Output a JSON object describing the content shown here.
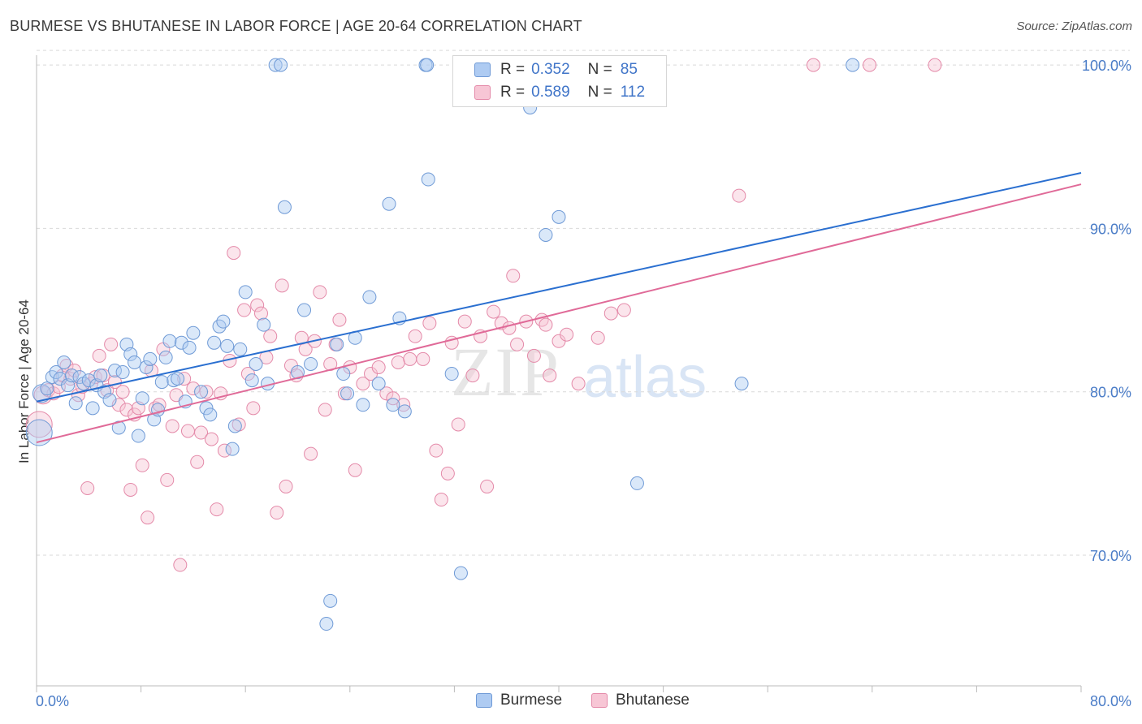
{
  "title": "BURMESE VS BHUTANESE IN LABOR FORCE | AGE 20-64 CORRELATION CHART",
  "source": "Source: ZipAtlas.com",
  "watermark": {
    "zip": "ZIP",
    "atlas": "atlas"
  },
  "legend": {
    "rows": [
      {
        "r_label": "R =",
        "r_value": "0.352",
        "n_label": "N =",
        "n_value": "85",
        "color": "#aecbf2",
        "border": "#6f9ad6"
      },
      {
        "r_label": "R =",
        "r_value": "0.589",
        "n_label": "N =",
        "n_value": "112",
        "color": "#f7c6d5",
        "border": "#e48aa9"
      }
    ]
  },
  "bottom_legend": [
    {
      "label": "Burmese",
      "color": "#aecbf2",
      "border": "#6f9ad6"
    },
    {
      "label": "Bhutanese",
      "color": "#f7c6d5",
      "border": "#e48aa9"
    }
  ],
  "chart_data": {
    "type": "scatter",
    "title": "BURMESE VS BHUTANESE IN LABOR FORCE | AGE 20-64 CORRELATION CHART",
    "xlabel": "",
    "ylabel": "In Labor Force | Age 20-64",
    "xlim": [
      0,
      80
    ],
    "ylim": [
      62,
      101
    ],
    "x_tick_labels": [
      "0.0%",
      "80.0%"
    ],
    "y_ticks": [
      70,
      80,
      90,
      100
    ],
    "y_tick_labels": [
      "70.0%",
      "80.0%",
      "90.0%",
      "100.0%"
    ],
    "grid": true,
    "colors": {
      "burmese": "#6f9ad6",
      "bhutanese": "#e48aa9",
      "burmese_line": "#2a6fd0",
      "bhutanese_line": "#e06a98"
    },
    "series": [
      {
        "name": "Burmese",
        "trend": {
          "x": [
            0,
            80
          ],
          "y": [
            79.4,
            93.4
          ]
        },
        "points": [
          [
            0.2,
            77.5
          ],
          [
            0.4,
            79.9
          ],
          [
            0.8,
            80.2
          ],
          [
            1.2,
            80.9
          ],
          [
            1.5,
            81.2
          ],
          [
            1.8,
            80.8
          ],
          [
            2.1,
            81.8
          ],
          [
            2.4,
            80.4
          ],
          [
            2.7,
            81.0
          ],
          [
            3.0,
            79.3
          ],
          [
            3.3,
            80.9
          ],
          [
            3.6,
            80.5
          ],
          [
            4.0,
            80.7
          ],
          [
            4.3,
            79.0
          ],
          [
            4.6,
            80.4
          ],
          [
            4.9,
            81.0
          ],
          [
            5.2,
            80.0
          ],
          [
            5.6,
            79.5
          ],
          [
            6.0,
            81.3
          ],
          [
            6.3,
            77.8
          ],
          [
            6.6,
            81.2
          ],
          [
            6.9,
            82.9
          ],
          [
            7.2,
            82.3
          ],
          [
            7.5,
            81.8
          ],
          [
            7.8,
            77.3
          ],
          [
            8.1,
            79.6
          ],
          [
            8.4,
            81.5
          ],
          [
            8.7,
            82.0
          ],
          [
            9.0,
            78.3
          ],
          [
            9.3,
            78.9
          ],
          [
            9.6,
            80.6
          ],
          [
            9.9,
            82.1
          ],
          [
            10.2,
            83.1
          ],
          [
            10.5,
            80.7
          ],
          [
            10.8,
            80.8
          ],
          [
            11.1,
            83.0
          ],
          [
            11.4,
            79.4
          ],
          [
            11.7,
            82.7
          ],
          [
            12.0,
            83.6
          ],
          [
            12.6,
            80.0
          ],
          [
            13.0,
            79.0
          ],
          [
            13.3,
            78.6
          ],
          [
            13.6,
            83.0
          ],
          [
            14.0,
            84.0
          ],
          [
            14.3,
            84.3
          ],
          [
            14.6,
            82.8
          ],
          [
            15.0,
            76.5
          ],
          [
            15.2,
            77.9
          ],
          [
            15.6,
            82.6
          ],
          [
            16.0,
            86.1
          ],
          [
            16.5,
            80.7
          ],
          [
            16.8,
            81.7
          ],
          [
            17.4,
            84.1
          ],
          [
            17.7,
            80.5
          ],
          [
            18.3,
            100.0
          ],
          [
            19.0,
            91.3
          ],
          [
            20.0,
            81.2
          ],
          [
            20.5,
            85.0
          ],
          [
            21.0,
            81.7
          ],
          [
            22.5,
            67.2
          ],
          [
            22.2,
            65.8
          ],
          [
            23.0,
            82.9
          ],
          [
            23.5,
            81.1
          ],
          [
            23.8,
            79.9
          ],
          [
            24.4,
            83.3
          ],
          [
            25.0,
            79.2
          ],
          [
            25.5,
            85.8
          ],
          [
            26.2,
            80.5
          ],
          [
            27.0,
            91.5
          ],
          [
            27.3,
            79.2
          ],
          [
            27.8,
            84.5
          ],
          [
            28.2,
            78.8
          ],
          [
            29.8,
            100.0
          ],
          [
            29.9,
            100.0
          ],
          [
            30.0,
            93.0
          ],
          [
            31.8,
            81.1
          ],
          [
            32.5,
            68.9
          ],
          [
            37.8,
            97.4
          ],
          [
            38.1,
            100.0
          ],
          [
            39.0,
            89.6
          ],
          [
            40.0,
            90.7
          ],
          [
            46.0,
            74.4
          ],
          [
            54.0,
            80.5
          ],
          [
            62.5,
            100.0
          ],
          [
            18.7,
            100.0
          ]
        ],
        "sizes_note": "large markers at x≈0.2 and x≈0.5"
      },
      {
        "name": "Bhutanese",
        "trend": {
          "x": [
            0,
            80
          ],
          "y": [
            76.9,
            92.7
          ]
        },
        "points": [
          [
            0.2,
            78.0
          ],
          [
            0.5,
            79.8
          ],
          [
            0.9,
            80.1
          ],
          [
            1.3,
            79.9
          ],
          [
            1.7,
            80.3
          ],
          [
            2.0,
            81.0
          ],
          [
            2.3,
            81.6
          ],
          [
            2.6,
            80.8
          ],
          [
            2.9,
            81.3
          ],
          [
            3.2,
            79.8
          ],
          [
            3.5,
            80.3
          ],
          [
            3.9,
            74.1
          ],
          [
            4.2,
            80.5
          ],
          [
            4.5,
            80.9
          ],
          [
            4.8,
            82.2
          ],
          [
            5.1,
            81.0
          ],
          [
            5.4,
            80.1
          ],
          [
            5.7,
            82.9
          ],
          [
            6.0,
            80.6
          ],
          [
            6.3,
            79.2
          ],
          [
            6.6,
            80.0
          ],
          [
            6.9,
            78.9
          ],
          [
            7.2,
            74.0
          ],
          [
            7.5,
            78.6
          ],
          [
            7.8,
            79.0
          ],
          [
            8.1,
            75.5
          ],
          [
            8.5,
            72.3
          ],
          [
            8.8,
            81.3
          ],
          [
            9.1,
            79.0
          ],
          [
            9.4,
            79.2
          ],
          [
            9.7,
            82.6
          ],
          [
            10.0,
            74.6
          ],
          [
            10.4,
            77.9
          ],
          [
            10.7,
            79.8
          ],
          [
            11.0,
            69.4
          ],
          [
            11.3,
            80.8
          ],
          [
            11.6,
            77.6
          ],
          [
            12.0,
            80.2
          ],
          [
            12.3,
            75.7
          ],
          [
            12.6,
            77.5
          ],
          [
            13.0,
            80.0
          ],
          [
            13.4,
            77.1
          ],
          [
            13.8,
            72.8
          ],
          [
            14.1,
            79.9
          ],
          [
            14.4,
            76.4
          ],
          [
            14.8,
            81.9
          ],
          [
            15.1,
            88.5
          ],
          [
            15.5,
            78.0
          ],
          [
            15.9,
            85.0
          ],
          [
            16.2,
            81.1
          ],
          [
            16.6,
            79.0
          ],
          [
            16.9,
            85.3
          ],
          [
            17.2,
            84.8
          ],
          [
            17.6,
            82.1
          ],
          [
            17.9,
            83.4
          ],
          [
            18.4,
            72.6
          ],
          [
            18.8,
            86.5
          ],
          [
            19.1,
            74.2
          ],
          [
            19.5,
            81.6
          ],
          [
            19.9,
            81.0
          ],
          [
            20.3,
            83.3
          ],
          [
            20.6,
            82.6
          ],
          [
            21.0,
            76.2
          ],
          [
            21.3,
            83.1
          ],
          [
            21.7,
            86.1
          ],
          [
            22.1,
            78.9
          ],
          [
            22.5,
            81.7
          ],
          [
            22.9,
            82.9
          ],
          [
            23.2,
            84.4
          ],
          [
            23.6,
            79.9
          ],
          [
            24.0,
            81.5
          ],
          [
            24.4,
            75.2
          ],
          [
            25.0,
            80.5
          ],
          [
            25.6,
            81.1
          ],
          [
            26.2,
            81.5
          ],
          [
            26.8,
            79.9
          ],
          [
            27.3,
            79.6
          ],
          [
            27.7,
            81.8
          ],
          [
            28.1,
            79.2
          ],
          [
            28.6,
            82.0
          ],
          [
            29.0,
            83.4
          ],
          [
            29.6,
            82.0
          ],
          [
            30.1,
            84.2
          ],
          [
            30.6,
            76.4
          ],
          [
            31.0,
            73.4
          ],
          [
            31.5,
            75.0
          ],
          [
            31.8,
            83.0
          ],
          [
            32.3,
            78.0
          ],
          [
            32.8,
            84.3
          ],
          [
            33.4,
            81.0
          ],
          [
            34.0,
            83.4
          ],
          [
            34.5,
            74.2
          ],
          [
            35.0,
            84.9
          ],
          [
            35.6,
            84.2
          ],
          [
            36.2,
            83.9
          ],
          [
            36.8,
            82.9
          ],
          [
            37.5,
            84.3
          ],
          [
            38.1,
            82.2
          ],
          [
            38.7,
            84.4
          ],
          [
            39.3,
            81.0
          ],
          [
            40.0,
            83.1
          ],
          [
            40.6,
            83.5
          ],
          [
            41.5,
            80.5
          ],
          [
            43.0,
            83.3
          ],
          [
            44.0,
            84.8
          ],
          [
            45.0,
            85.0
          ],
          [
            53.8,
            92.0
          ],
          [
            59.5,
            100.0
          ],
          [
            63.8,
            100.0
          ],
          [
            68.8,
            100.0
          ],
          [
            36.5,
            87.1
          ],
          [
            39.0,
            84.1
          ]
        ]
      }
    ]
  }
}
